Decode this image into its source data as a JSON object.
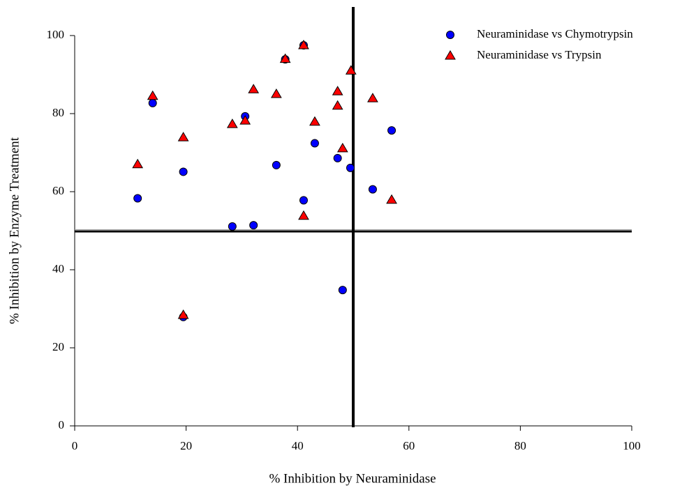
{
  "chart_data": {
    "type": "scatter",
    "x_label": "% Inhibition by Neuraminidase",
    "y_label": "% Inhibition by Enzyme Treatment",
    "xlim": [
      0,
      100
    ],
    "xticks": [
      0,
      20,
      40,
      60,
      80,
      100
    ],
    "ylim": [
      0,
      100
    ],
    "yticks": [
      0,
      20,
      40,
      60,
      80,
      100
    ],
    "vlines": [
      50
    ],
    "hlines": [
      50
    ],
    "legend": "top-right",
    "series": [
      {
        "name": "Neuraminidase vs Chymotrypsin",
        "color": "#0000ff",
        "marker": "circle",
        "x": [
          11.3,
          14.0,
          19.5,
          19.5,
          28.3,
          30.6,
          32.1,
          36.2,
          37.8,
          41.1,
          41.1,
          43.1,
          47.2,
          48.1,
          49.5,
          53.5,
          56.9
        ],
        "values": [
          58.3,
          82.7,
          65.1,
          27.9,
          51.1,
          79.3,
          51.4,
          66.8,
          93.9,
          97.5,
          57.8,
          72.4,
          68.6,
          34.8,
          66.1,
          60.6,
          75.7
        ]
      },
      {
        "name": "Neuraminidase vs Trypsin",
        "color": "#ff0000",
        "marker": "triangle",
        "x": [
          11.3,
          14.0,
          19.5,
          19.5,
          28.3,
          30.6,
          32.1,
          36.2,
          37.8,
          41.1,
          41.1,
          43.1,
          47.2,
          47.2,
          48.1,
          49.6,
          53.5,
          56.9
        ],
        "values": [
          67.0,
          84.5,
          73.9,
          28.4,
          77.3,
          78.2,
          86.2,
          85.0,
          94.0,
          97.5,
          53.8,
          77.9,
          85.7,
          82.0,
          71.1,
          91.0,
          83.9,
          57.9
        ]
      }
    ]
  }
}
